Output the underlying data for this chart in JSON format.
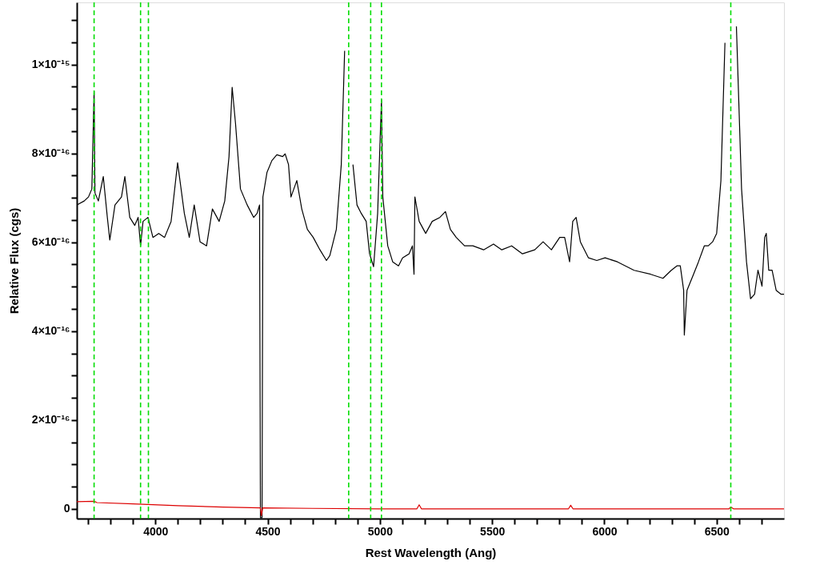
{
  "chart_data": {
    "type": "line",
    "xlabel": "Rest Wavelength (Ang)",
    "ylabel": "Relative Flux (cgs)",
    "xlim": [
      3650,
      6800
    ],
    "ylim": [
      -2.2e-17,
      1.14e-15
    ],
    "xticks": [
      {
        "value": 3700,
        "label": null
      },
      {
        "value": 3800,
        "label": null
      },
      {
        "value": 3900,
        "label": null
      },
      4000,
      {
        "value": 4100,
        "label": null
      },
      {
        "value": 4200,
        "label": null
      },
      {
        "value": 4300,
        "label": null
      },
      {
        "value": 4400,
        "label": null
      },
      4500,
      {
        "value": 4600,
        "label": null
      },
      {
        "value": 4700,
        "label": null
      },
      {
        "value": 4800,
        "label": null
      },
      {
        "value": 4900,
        "label": null
      },
      5000,
      {
        "value": 5100,
        "label": null
      },
      {
        "value": 5200,
        "label": null
      },
      {
        "value": 5300,
        "label": null
      },
      {
        "value": 5400,
        "label": null
      },
      5500,
      {
        "value": 5600,
        "label": null
      },
      {
        "value": 5700,
        "label": null
      },
      {
        "value": 5800,
        "label": null
      },
      {
        "value": 5900,
        "label": null
      },
      6000,
      {
        "value": 6100,
        "label": null
      },
      {
        "value": 6200,
        "label": null
      },
      {
        "value": 6300,
        "label": null
      },
      {
        "value": 6400,
        "label": null
      },
      6500,
      {
        "value": 6600,
        "label": null
      },
      {
        "value": 6700,
        "label": null
      }
    ],
    "yticks": [
      0,
      {
        "value": 5e-17,
        "label": null
      },
      {
        "value": 1e-16,
        "label": null
      },
      {
        "value": 1.5e-16,
        "label": null
      },
      {
        "value": 2e-16,
        "label": "2×10⁻¹⁶"
      },
      {
        "value": 2.5e-16,
        "label": null
      },
      {
        "value": 3e-16,
        "label": null
      },
      {
        "value": 3.5e-16,
        "label": null
      },
      {
        "value": 4e-16,
        "label": "4×10⁻¹⁶"
      },
      {
        "value": 4.5e-16,
        "label": null
      },
      {
        "value": 5e-16,
        "label": null
      },
      {
        "value": 5.5e-16,
        "label": null
      },
      {
        "value": 6e-16,
        "label": "6×10⁻¹⁶"
      },
      {
        "value": 6.5e-16,
        "label": null
      },
      {
        "value": 7e-16,
        "label": null
      },
      {
        "value": 7.5e-16,
        "label": null
      },
      {
        "value": 8e-16,
        "label": "8×10⁻¹⁶"
      },
      {
        "value": 8.5e-16,
        "label": null
      },
      {
        "value": 9e-16,
        "label": null
      },
      {
        "value": 9.5e-16,
        "label": null
      },
      {
        "value": 1e-15,
        "label": "1×10⁻¹⁵"
      },
      {
        "value": 1.05e-15,
        "label": null
      },
      {
        "value": 1.1e-15,
        "label": null
      }
    ],
    "marker": "none",
    "line_style": "solid",
    "series": [
      {
        "color": "#000000",
        "x": [
          3650,
          3683,
          3702,
          3717,
          3727,
          3731,
          3746,
          3768,
          3786,
          3797,
          3820,
          3849,
          3864,
          3886,
          3908,
          3923,
          3934,
          3945,
          3967,
          3989,
          4015,
          4041,
          4070,
          4099,
          4129,
          4151,
          4173,
          4199,
          4228,
          4254,
          4284,
          4309,
          4328,
          4342,
          4357,
          4379,
          4409,
          4438,
          4453,
          4464,
          4468,
          4475,
          4479,
          4497,
          4519,
          4541,
          4567,
          4578,
          4593,
          4604,
          4630,
          4652,
          4677,
          4703,
          4733,
          4762,
          4777,
          4806,
          4828,
          4843,
          4851,
          4865,
          4880,
          4898,
          4917,
          4939,
          4954,
          4972,
          4990,
          5007,
          5013,
          5035,
          5057,
          5083,
          5101,
          5130,
          5145,
          5152,
          5156,
          5175,
          5204,
          5233,
          5267,
          5292,
          5314,
          5340,
          5377,
          5414,
          5462,
          5506,
          5543,
          5587,
          5635,
          5690,
          5727,
          5764,
          5801,
          5823,
          5845,
          5859,
          5874,
          5893,
          5929,
          5966,
          6003,
          6058,
          6132,
          6206,
          6261,
          6298,
          6323,
          6338,
          6353,
          6356,
          6368,
          6397,
          6419,
          6445,
          6463,
          6482,
          6500,
          6519,
          6537,
          6548,
          6574,
          6588,
          6611,
          6633,
          6651,
          6669,
          6684,
          6702,
          6714,
          6721,
          6732,
          6747,
          6765,
          6787,
          6800
        ],
        "values": [
          6.84e-16,
          6.93e-16,
          7.02e-16,
          7.2e-16,
          9.4e-16,
          7.11e-16,
          6.93e-16,
          7.48e-16,
          6.56e-16,
          6.05e-16,
          6.84e-16,
          7.02e-16,
          7.48e-16,
          6.56e-16,
          6.38e-16,
          6.56e-16,
          5.92e-16,
          6.47e-16,
          6.56e-16,
          6.11e-16,
          6.2e-16,
          6.11e-16,
          6.47e-16,
          7.79e-16,
          6.65e-16,
          6.11e-16,
          6.84e-16,
          6.01e-16,
          5.92e-16,
          6.75e-16,
          6.47e-16,
          6.93e-16,
          7.93e-16,
          9.49e-16,
          8.67e-16,
          7.2e-16,
          6.84e-16,
          6.56e-16,
          6.65e-16,
          6.84e-16,
          -2e-17,
          -2e-17,
          7.02e-16,
          7.57e-16,
          7.84e-16,
          7.97e-16,
          7.93e-16,
          7.99e-16,
          7.75e-16,
          7.02e-16,
          7.39e-16,
          6.75e-16,
          6.29e-16,
          6.11e-16,
          5.83e-16,
          5.59e-16,
          5.7e-16,
          6.29e-16,
          7.75e-16,
          1.031e-15,
          null,
          null,
          7.75e-16,
          6.84e-16,
          6.65e-16,
          6.47e-16,
          5.74e-16,
          5.45e-16,
          6.65e-16,
          9.21e-16,
          7.02e-16,
          5.92e-16,
          5.56e-16,
          5.47e-16,
          5.65e-16,
          5.74e-16,
          5.92e-16,
          5.28e-16,
          7.02e-16,
          6.47e-16,
          6.2e-16,
          6.47e-16,
          6.56e-16,
          6.69e-16,
          6.29e-16,
          6.11e-16,
          5.92e-16,
          5.92e-16,
          5.83e-16,
          5.96e-16,
          5.83e-16,
          5.92e-16,
          5.74e-16,
          5.83e-16,
          6.01e-16,
          5.83e-16,
          6.11e-16,
          6.11e-16,
          5.56e-16,
          6.47e-16,
          6.56e-16,
          6.01e-16,
          5.65e-16,
          5.59e-16,
          5.65e-16,
          5.56e-16,
          5.37e-16,
          5.28e-16,
          5.19e-16,
          5.37e-16,
          5.47e-16,
          5.47e-16,
          4.92e-16,
          3.91e-16,
          4.92e-16,
          5.28e-16,
          5.56e-16,
          5.92e-16,
          5.92e-16,
          6.01e-16,
          6.2e-16,
          7.39e-16,
          1.049e-15,
          null,
          null,
          1.086e-15,
          7.2e-16,
          5.56e-16,
          4.73e-16,
          4.83e-16,
          5.37e-16,
          5.01e-16,
          6.11e-16,
          6.2e-16,
          5.37e-16,
          5.37e-16,
          4.92e-16,
          4.83e-16,
          4.83e-16
        ]
      },
      {
        "color": "#dd0000",
        "x": [
          3650,
          3727,
          3740,
          3900,
          4100,
          4300,
          4468,
          4472,
          4478,
          4700,
          5000,
          5165,
          5175,
          5185,
          5840,
          5850,
          5860,
          6555,
          6563,
          6575,
          6800
        ],
        "values": [
          1.6e-17,
          1.7e-17,
          1.4e-17,
          1.1e-17,
          7e-18,
          4e-18,
          2e-18,
          -1.5e-17,
          2e-18,
          1e-18,
          0,
          0,
          9e-18,
          0,
          0,
          8e-18,
          0,
          0,
          4e-18,
          0,
          0
        ]
      }
    ],
    "ref_lines": [
      {
        "axis": "x",
        "value": 3727,
        "color": "#00dd00",
        "line_style": "dashed"
      },
      {
        "axis": "x",
        "value": 3934,
        "color": "#00dd00",
        "line_style": "dashed"
      },
      {
        "axis": "x",
        "value": 3969,
        "color": "#00dd00",
        "line_style": "dashed"
      },
      {
        "axis": "x",
        "value": 4861,
        "color": "#00dd00",
        "line_style": "dashed"
      },
      {
        "axis": "x",
        "value": 4959,
        "color": "#00dd00",
        "line_style": "dashed"
      },
      {
        "axis": "x",
        "value": 5007,
        "color": "#00dd00",
        "line_style": "dashed"
      },
      {
        "axis": "x",
        "value": 6563,
        "color": "#00dd00",
        "line_style": "dashed"
      }
    ]
  }
}
